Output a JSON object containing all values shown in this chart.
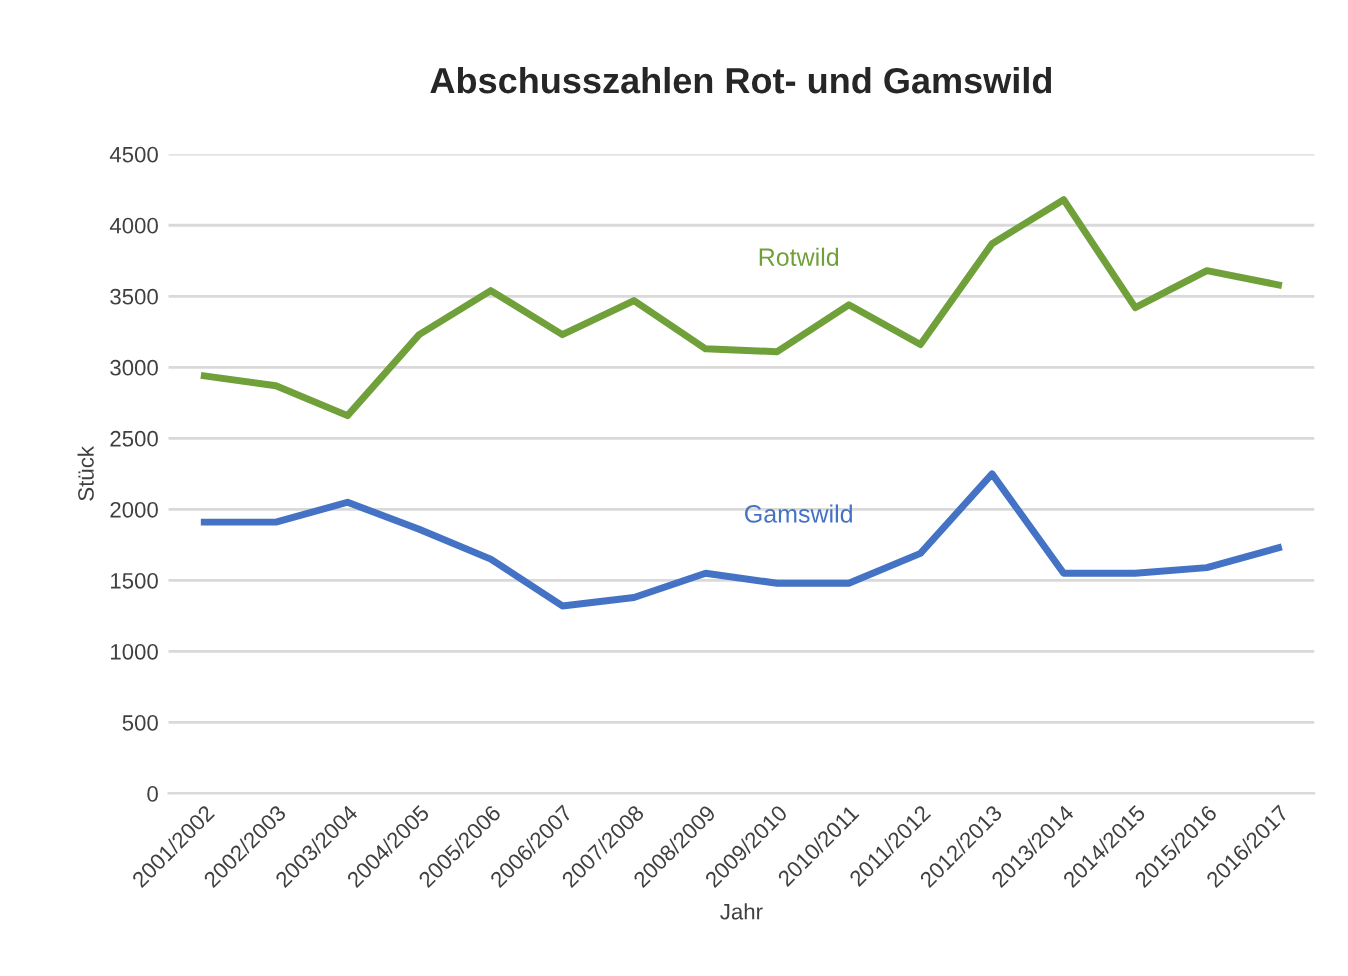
{
  "chart_data": {
    "type": "line",
    "title": "Abschusszahlen Rot- und Gamswild",
    "xlabel": "Jahr",
    "ylabel": "Stück",
    "categories": [
      "2001/2002",
      "2002/2003",
      "2003/2004",
      "2004/2005",
      "2005/2006",
      "2006/2007",
      "2007/2008",
      "2008/2009",
      "2009/2010",
      "2010/2011",
      "2011/2012",
      "2012/2013",
      "2013/2014",
      "2014/2015",
      "2015/2016",
      "2016/2017"
    ],
    "series": [
      {
        "name": "Rotwild",
        "color": "#70a03a",
        "values": [
          2940,
          2870,
          2660,
          3230,
          3540,
          3230,
          3470,
          3130,
          3110,
          3440,
          3160,
          3870,
          4180,
          3420,
          3680,
          3580
        ]
      },
      {
        "name": "Gamswild",
        "color": "#4472c4",
        "values": [
          1910,
          1910,
          2050,
          1860,
          1650,
          1320,
          1380,
          1550,
          1480,
          1480,
          1690,
          2250,
          1550,
          1550,
          1590,
          1730
        ]
      }
    ],
    "ylim": [
      0,
      4500
    ],
    "yticks": [
      0,
      500,
      1000,
      1500,
      2000,
      2500,
      3000,
      3500,
      4000,
      4500
    ],
    "grid": "y",
    "legend": false,
    "marker": "none",
    "line_style": "solid"
  }
}
